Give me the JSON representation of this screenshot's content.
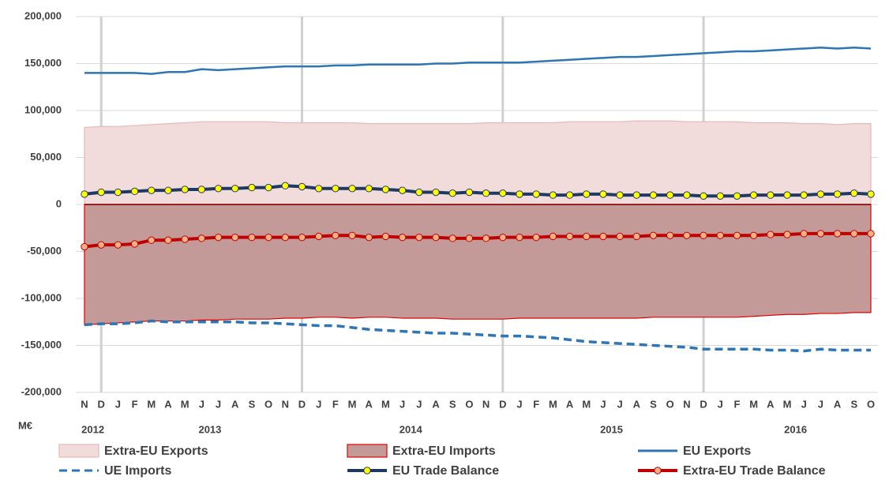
{
  "chart_data": {
    "type": "line",
    "y_unit_label": "M€",
    "categories": [
      "N",
      "D",
      "J",
      "F",
      "M",
      "A",
      "M",
      "J",
      "J",
      "A",
      "S",
      "O",
      "N",
      "D",
      "J",
      "F",
      "M",
      "A",
      "M",
      "J",
      "J",
      "A",
      "S",
      "O",
      "N",
      "D",
      "J",
      "F",
      "M",
      "A",
      "M",
      "J",
      "J",
      "A",
      "S",
      "O",
      "N",
      "D",
      "J",
      "F",
      "M",
      "A",
      "M",
      "J",
      "J",
      "A",
      "S",
      "O"
    ],
    "year_groups": [
      {
        "label": "2012",
        "size": 2
      },
      {
        "label": "2013",
        "size": 12
      },
      {
        "label": "2014",
        "size": 12
      },
      {
        "label": "2015",
        "size": 12
      },
      {
        "label": "2016",
        "size": 10
      }
    ],
    "ylim": [
      -200000,
      200000
    ],
    "yticks": [
      {
        "value": -200000,
        "label": "-200,000"
      },
      {
        "value": -150000,
        "label": "-150,000"
      },
      {
        "value": -100000,
        "label": "-100,000"
      },
      {
        "value": -50000,
        "label": "-50,000"
      },
      0,
      {
        "value": 50000,
        "label": "50,000"
      },
      {
        "value": 100000,
        "label": "100,000"
      },
      {
        "value": 150000,
        "label": "150,000"
      },
      {
        "value": 200000,
        "label": "200,000"
      }
    ],
    "grid": true,
    "legend_position": "bottom",
    "series": [
      {
        "name": "Extra-EU Exports",
        "kind": "area",
        "color": "#e6b9b8",
        "fill": "#f2dcdb",
        "values": [
          82000,
          83000,
          83000,
          84000,
          85000,
          86000,
          87000,
          88000,
          88000,
          88000,
          88000,
          88000,
          87000,
          87000,
          87000,
          87000,
          87000,
          86000,
          86000,
          86000,
          86000,
          86000,
          86000,
          86000,
          87000,
          87000,
          87000,
          87000,
          87000,
          88000,
          88000,
          88000,
          88000,
          89000,
          89000,
          89000,
          88000,
          88000,
          88000,
          88000,
          87000,
          87000,
          87000,
          86000,
          86000,
          85000,
          86000,
          86000
        ]
      },
      {
        "name": "Extra-EU Imports",
        "kind": "area",
        "color": "#e00000",
        "fill": "#c49a99",
        "values": [
          -128000,
          -127000,
          -126000,
          -125000,
          -124000,
          -124000,
          -124000,
          -123000,
          -123000,
          -122000,
          -122000,
          -122000,
          -121000,
          -121000,
          -120000,
          -120000,
          -121000,
          -120000,
          -120000,
          -121000,
          -121000,
          -121000,
          -122000,
          -122000,
          -122000,
          -122000,
          -121000,
          -121000,
          -121000,
          -121000,
          -121000,
          -121000,
          -121000,
          -121000,
          -120000,
          -120000,
          -120000,
          -120000,
          -120000,
          -120000,
          -119000,
          -118000,
          -117000,
          -117000,
          -116000,
          -116000,
          -115000,
          -115000
        ]
      },
      {
        "name": "EU Exports",
        "kind": "line",
        "color": "#2e75b6",
        "values": [
          140000,
          140000,
          140000,
          140000,
          139000,
          141000,
          141000,
          144000,
          143000,
          144000,
          145000,
          146000,
          147000,
          147000,
          147000,
          148000,
          148000,
          149000,
          149000,
          149000,
          149000,
          150000,
          150000,
          151000,
          151000,
          151000,
          151000,
          152000,
          153000,
          154000,
          155000,
          156000,
          157000,
          157000,
          158000,
          159000,
          160000,
          161000,
          162000,
          163000,
          163000,
          164000,
          165000,
          166000,
          167000,
          166000,
          167000,
          166000
        ]
      },
      {
        "name": "UE Imports",
        "kind": "line",
        "dash": true,
        "color": "#2e75b6",
        "values": [
          -128000,
          -127000,
          -127000,
          -126000,
          -124000,
          -125000,
          -125000,
          -125000,
          -125000,
          -125000,
          -126000,
          -126000,
          -127000,
          -128000,
          -129000,
          -129000,
          -131000,
          -133000,
          -134000,
          -135000,
          -136000,
          -137000,
          -137000,
          -138000,
          -139000,
          -140000,
          -140000,
          -141000,
          -142000,
          -144000,
          -146000,
          -147000,
          -148000,
          -149000,
          -150000,
          -151000,
          -152000,
          -154000,
          -154000,
          -154000,
          -154000,
          -155000,
          -155000,
          -156000,
          -154000,
          -155000,
          -155000,
          -155000
        ]
      },
      {
        "name": "EU Trade Balance",
        "kind": "line",
        "color": "#1f3864",
        "marker": "#ffff00",
        "values": [
          11000,
          13000,
          13000,
          14000,
          15000,
          15000,
          16000,
          16000,
          17000,
          17000,
          18000,
          18000,
          20000,
          19000,
          17000,
          17000,
          17000,
          17000,
          16000,
          15000,
          13000,
          13000,
          12000,
          13000,
          12000,
          12000,
          11000,
          11000,
          10000,
          10000,
          11000,
          11000,
          10000,
          10000,
          10000,
          10000,
          10000,
          9000,
          9000,
          9000,
          10000,
          10000,
          10000,
          10000,
          11000,
          11000,
          12000,
          11000
        ]
      },
      {
        "name": "Extra-EU Trade Balance",
        "kind": "line",
        "color": "#c00000",
        "marker": "#f4b183",
        "values": [
          -45000,
          -43000,
          -43000,
          -42000,
          -38000,
          -38000,
          -37000,
          -36000,
          -35000,
          -35000,
          -35000,
          -35000,
          -35000,
          -35000,
          -34000,
          -33000,
          -33000,
          -35000,
          -34000,
          -35000,
          -35000,
          -35000,
          -36000,
          -36000,
          -36000,
          -35000,
          -35000,
          -35000,
          -34000,
          -34000,
          -34000,
          -34000,
          -34000,
          -34000,
          -33000,
          -33000,
          -33000,
          -33000,
          -33000,
          -33000,
          -33000,
          -32000,
          -32000,
          -31000,
          -31000,
          -31000,
          -31000,
          -31000
        ]
      }
    ]
  }
}
